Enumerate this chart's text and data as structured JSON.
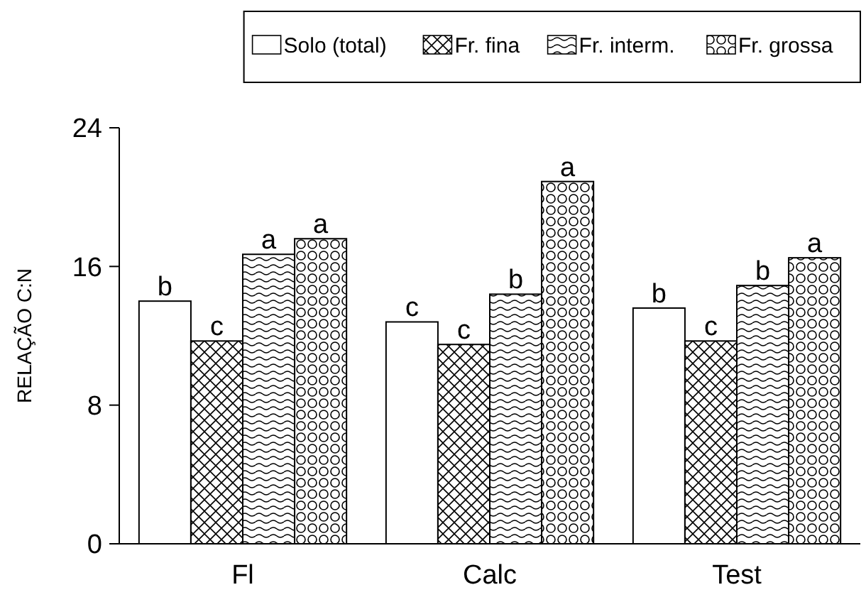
{
  "chart_data": {
    "type": "bar",
    "ylabel": "RELAÇÃO C:N",
    "categories": [
      "Fl",
      "Calc",
      "Test"
    ],
    "series": [
      {
        "name": "Solo (total)",
        "color": "#ffffff",
        "values": [
          14.0,
          12.8,
          13.6
        ],
        "value_labels": [
          "b",
          "c",
          "b"
        ]
      },
      {
        "name": "Fr. fina",
        "color": "#000000",
        "values": [
          11.7,
          11.5,
          11.7
        ],
        "value_labels": [
          "c",
          "c",
          "c"
        ]
      },
      {
        "name": "Fr. interm.",
        "color": "#000000",
        "values": [
          16.7,
          14.4,
          14.9
        ],
        "value_labels": [
          "a",
          "b",
          "b"
        ]
      },
      {
        "name": "Fr. grossa",
        "color": "#000000",
        "values": [
          17.6,
          20.9,
          16.5
        ],
        "value_labels": [
          "a",
          "a",
          "a"
        ]
      }
    ],
    "ylim": [
      0,
      24
    ],
    "yticks": [
      0,
      8,
      16,
      24
    ],
    "legend": "top"
  }
}
